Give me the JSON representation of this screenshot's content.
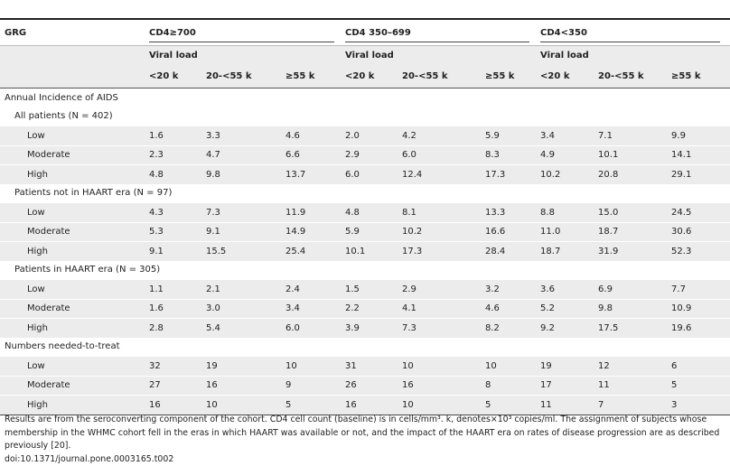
{
  "table": {
    "corner": "GRG",
    "groups": [
      {
        "label": "CD4≥700",
        "sub": "Viral load",
        "columns": [
          "<20 k",
          "20-<55 k",
          "≥55 k"
        ]
      },
      {
        "label": "CD4 350–699",
        "sub": "Viral load",
        "columns": [
          "<20 k",
          "20-<55 k",
          "≥55 k"
        ]
      },
      {
        "label": "CD4<350",
        "sub": "Viral load",
        "columns": [
          "<20 k",
          "20-<55 k",
          "≥55 k"
        ]
      }
    ],
    "sections": [
      {
        "title": "Annual Incidence of AIDS",
        "subsections": [
          {
            "title": "All patients (N = 402)",
            "rows": [
              {
                "label": "Low",
                "cells": [
                  "1.6",
                  "3.3",
                  "4.6",
                  "2.0",
                  "4.2",
                  "5.9",
                  "3.4",
                  "7.1",
                  "9.9"
                ]
              },
              {
                "label": "Moderate",
                "cells": [
                  "2.3",
                  "4.7",
                  "6.6",
                  "2.9",
                  "6.0",
                  "8.3",
                  "4.9",
                  "10.1",
                  "14.1"
                ]
              },
              {
                "label": "High",
                "cells": [
                  "4.8",
                  "9.8",
                  "13.7",
                  "6.0",
                  "12.4",
                  "17.3",
                  "10.2",
                  "20.8",
                  "29.1"
                ]
              }
            ]
          },
          {
            "title": "Patients not in HAART era (N = 97)",
            "rows": [
              {
                "label": "Low",
                "cells": [
                  "4.3",
                  "7.3",
                  "11.9",
                  "4.8",
                  "8.1",
                  "13.3",
                  "8.8",
                  "15.0",
                  "24.5"
                ]
              },
              {
                "label": "Moderate",
                "cells": [
                  "5.3",
                  "9.1",
                  "14.9",
                  "5.9",
                  "10.2",
                  "16.6",
                  "11.0",
                  "18.7",
                  "30.6"
                ]
              },
              {
                "label": "High",
                "cells": [
                  "9.1",
                  "15.5",
                  "25.4",
                  "10.1",
                  "17.3",
                  "28.4",
                  "18.7",
                  "31.9",
                  "52.3"
                ]
              }
            ]
          },
          {
            "title": "Patients in HAART era (N = 305)",
            "rows": [
              {
                "label": "Low",
                "cells": [
                  "1.1",
                  "2.1",
                  "2.4",
                  "1.5",
                  "2.9",
                  "3.2",
                  "3.6",
                  "6.9",
                  "7.7"
                ]
              },
              {
                "label": "Moderate",
                "cells": [
                  "1.6",
                  "3.0",
                  "3.4",
                  "2.2",
                  "4.1",
                  "4.6",
                  "5.2",
                  "9.8",
                  "10.9"
                ]
              },
              {
                "label": "High",
                "cells": [
                  "2.8",
                  "5.4",
                  "6.0",
                  "3.9",
                  "7.3",
                  "8.2",
                  "9.2",
                  "17.5",
                  "19.6"
                ]
              }
            ]
          }
        ]
      },
      {
        "title": "Numbers needed-to-treat",
        "subsections": [
          {
            "rows": [
              {
                "label": "Low",
                "cells": [
                  "32",
                  "19",
                  "10",
                  "31",
                  "10",
                  "10",
                  "19",
                  "12",
                  "6"
                ]
              },
              {
                "label": "Moderate",
                "cells": [
                  "27",
                  "16",
                  "9",
                  "26",
                  "16",
                  "8",
                  "17",
                  "11",
                  "5"
                ]
              },
              {
                "label": "High",
                "cells": [
                  "16",
                  "10",
                  "5",
                  "16",
                  "10",
                  "5",
                  "11",
                  "7",
                  "3"
                ]
              }
            ]
          }
        ]
      }
    ]
  },
  "footnote": "Results are from the seroconverting component of the cohort. CD4 cell count (baseline) is in cells/mm³. k, denotes×10³ copies/ml. The assignment of subjects whose membership in the WHMC cohort fell in the eras in which HAART was available or not, and the impact of the HAART era on rates of disease progression are as described previously [20].",
  "doi": "doi:10.1371/journal.pone.0003165.t002"
}
